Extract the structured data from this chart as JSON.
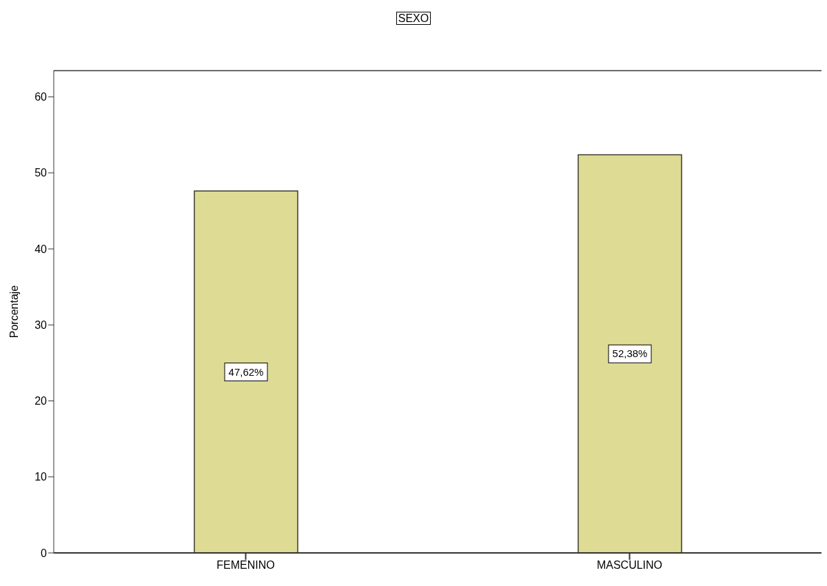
{
  "chart_data": {
    "type": "bar",
    "title": "SEXO",
    "ylabel": "Porcentaje",
    "categories": [
      "FEMENINO",
      "MASCULINO"
    ],
    "values": [
      47.62,
      52.38
    ],
    "value_labels": [
      "47,62%",
      "52,38%"
    ],
    "color": "#dedb94",
    "ylim": [
      0,
      63.5
    ],
    "yticks": [
      0,
      10,
      20,
      30,
      40,
      50,
      60
    ],
    "grid": false,
    "legend": false
  }
}
